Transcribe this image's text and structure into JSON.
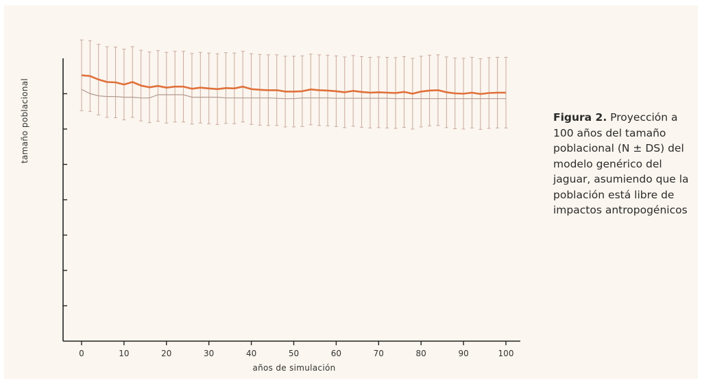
{
  "caption": {
    "label": "Figura 2.",
    "text": "Proyección a 100 años del tamaño poblacional (N ± DS) del modelo genérico del jaguar, asumiendo que la población está libre de impactos antropogénicos"
  },
  "colors": {
    "background": "#fbf6ef",
    "mean_line": "#e0703a",
    "error_bars": "#c9a99c",
    "lower_line": "#b39a90",
    "axis": "#222222"
  },
  "chart_data": {
    "type": "line",
    "title": "",
    "xlabel": "años de simulación",
    "ylabel": "tamaño poblacional",
    "xlim": [
      -5,
      103
    ],
    "ylim": [
      0,
      8
    ],
    "x_ticks": [
      0,
      10,
      20,
      30,
      40,
      50,
      60,
      70,
      80,
      90,
      100
    ],
    "y_ticks": [
      1,
      2,
      3,
      4,
      5,
      6,
      7
    ],
    "y_tick_labels_shown": false,
    "grid": false,
    "legend": "none",
    "error_bar_sd": 1.0,
    "series": [
      {
        "role": "mean",
        "x": [
          0,
          2,
          4,
          6,
          8,
          10,
          12,
          14,
          16,
          18,
          20,
          22,
          24,
          26,
          28,
          30,
          32,
          34,
          36,
          38,
          40,
          42,
          44,
          46,
          48,
          50,
          52,
          54,
          56,
          58,
          60,
          62,
          64,
          66,
          68,
          70,
          72,
          74,
          76,
          78,
          80,
          82,
          84,
          86,
          88,
          90,
          92,
          94,
          96,
          98,
          100
        ],
        "y": [
          7.52,
          7.5,
          7.4,
          7.33,
          7.32,
          7.26,
          7.33,
          7.23,
          7.18,
          7.22,
          7.17,
          7.2,
          7.2,
          7.14,
          7.17,
          7.15,
          7.13,
          7.16,
          7.15,
          7.2,
          7.13,
          7.11,
          7.1,
          7.1,
          7.06,
          7.06,
          7.07,
          7.12,
          7.1,
          7.09,
          7.07,
          7.04,
          7.08,
          7.05,
          7.03,
          7.04,
          7.03,
          7.02,
          7.05,
          7.0,
          7.06,
          7.09,
          7.1,
          7.04,
          7.01,
          7.0,
          7.03,
          6.99,
          7.02,
          7.03,
          7.03
        ]
      },
      {
        "role": "lower",
        "x": [
          0,
          2,
          4,
          6,
          8,
          10,
          12,
          14,
          16,
          18,
          20,
          22,
          24,
          26,
          28,
          30,
          32,
          34,
          36,
          38,
          40,
          42,
          44,
          46,
          48,
          50,
          52,
          54,
          56,
          58,
          60,
          62,
          64,
          66,
          68,
          70,
          72,
          74,
          76,
          78,
          80,
          82,
          84,
          86,
          88,
          90,
          92,
          94,
          96,
          98,
          100
        ],
        "y": [
          7.12,
          7.0,
          6.94,
          6.92,
          6.92,
          6.9,
          6.9,
          6.88,
          6.88,
          6.97,
          6.97,
          6.97,
          6.97,
          6.9,
          6.9,
          6.9,
          6.9,
          6.88,
          6.88,
          6.88,
          6.88,
          6.88,
          6.88,
          6.87,
          6.86,
          6.86,
          6.88,
          6.88,
          6.88,
          6.88,
          6.87,
          6.87,
          6.87,
          6.87,
          6.87,
          6.87,
          6.87,
          6.86,
          6.86,
          6.86,
          6.86,
          6.86,
          6.86,
          6.86,
          6.86,
          6.86,
          6.86,
          6.86,
          6.86,
          6.86,
          6.86
        ]
      }
    ]
  }
}
